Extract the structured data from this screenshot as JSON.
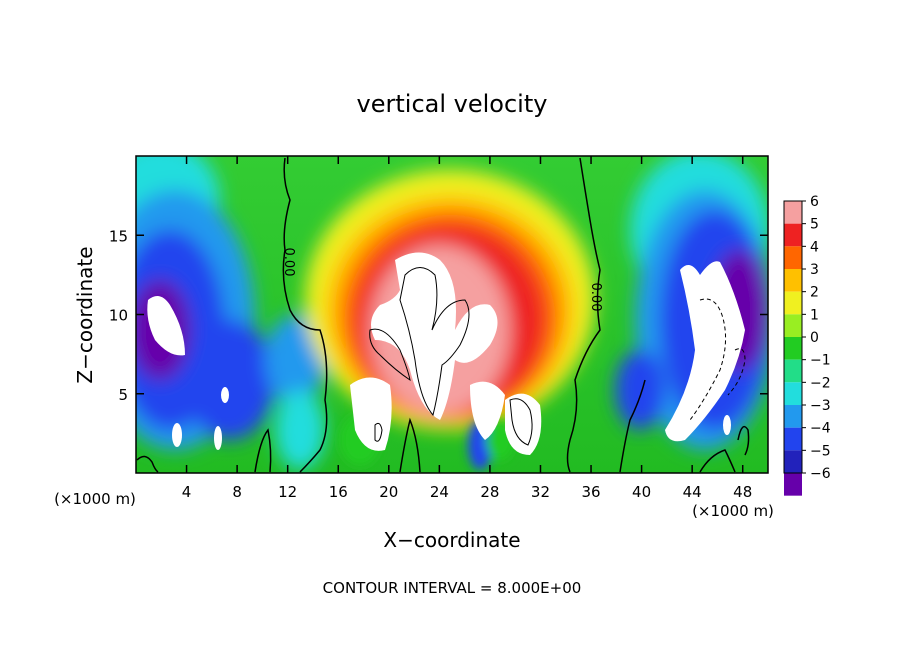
{
  "chart_data": {
    "type": "heatmap",
    "title": "vertical velocity",
    "xlabel": "X−coordinate",
    "ylabel": "Z−coordinate",
    "x_unit_left": "(×1000 m)",
    "x_unit_right": "(×1000 m)",
    "footer": "CONTOUR INTERVAL = 8.000E+00",
    "xlim": [
      0,
      50
    ],
    "ylim": [
      0,
      20
    ],
    "x_ticks": [
      4,
      8,
      12,
      16,
      20,
      24,
      28,
      32,
      36,
      40,
      44,
      48
    ],
    "y_ticks": [
      5,
      10,
      15
    ],
    "zero_contour_labels": [
      {
        "text": "0.00",
        "x": 12,
        "z": 13.5
      },
      {
        "text": "0.00",
        "x": 36,
        "z": 11
      }
    ],
    "colorbar": {
      "levels": [
        6,
        5,
        4,
        3,
        2,
        1,
        0,
        "−1",
        "−2",
        "−3",
        "−4",
        "−5",
        "−6"
      ],
      "colors": [
        "#f5a0a0",
        "#ee2222",
        "#ff6600",
        "#ffc000",
        "#f0f020",
        "#99ee22",
        "#22cc22",
        "#22dd88",
        "#22dddd",
        "#2299ee",
        "#2244ee",
        "#2222bb",
        "#6600aa"
      ]
    },
    "features": [
      {
        "kind": "updraft",
        "x": 24,
        "z": 8,
        "value": 6
      },
      {
        "kind": "downdraft",
        "x": 3,
        "z": 9,
        "value": -6
      },
      {
        "kind": "downdraft",
        "x": 46,
        "z": 9,
        "value": -6
      }
    ]
  }
}
